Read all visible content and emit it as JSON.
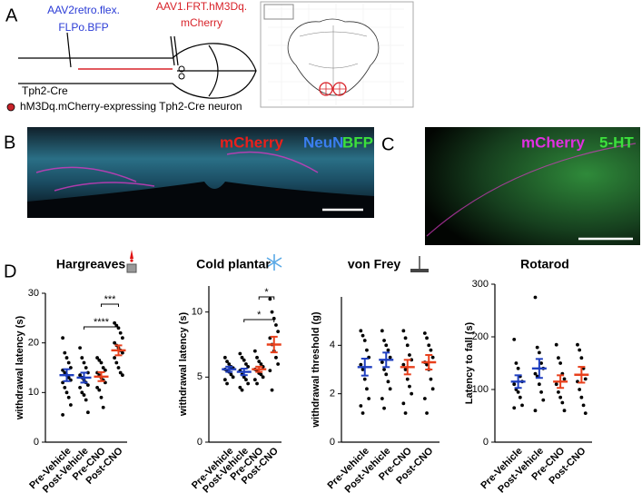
{
  "panels": {
    "a": {
      "label": "A",
      "virus_1": [
        "AAV2retro.flex.",
        "FLPo.BFP"
      ],
      "virus_2": [
        "AAV1.FRT.hM3Dq.",
        "mCherry"
      ],
      "mouse_line": "Tph2-Cre",
      "legend": "hM3Dq.mCherry-expressing Tph2-Cre neuron"
    },
    "b": {
      "label": "B",
      "stains": [
        "mCherry",
        "NeuN",
        "BFP"
      ]
    },
    "c": {
      "label": "C",
      "stains": [
        "mCherry",
        "5-HT"
      ]
    },
    "d": {
      "label": "D"
    }
  },
  "chart_data": [
    {
      "type": "strip",
      "title": "Hargreaves",
      "y_label": "withdrawal latency (s)",
      "categories": [
        "Pre-Vehicle",
        "Post-Vehicle",
        "Pre-CNO",
        "Post-CNO"
      ],
      "colors": [
        "#1f3fbf",
        "#1f3fbf",
        "#e8401c",
        "#e8401c"
      ],
      "points": [
        [
          21,
          18,
          17,
          16,
          15,
          14.5,
          14,
          13.5,
          13,
          12.5,
          12,
          11,
          10,
          9,
          7.5,
          5.5
        ],
        [
          19,
          17,
          16,
          15,
          14,
          13.5,
          13,
          12.5,
          12,
          11.5,
          11,
          10,
          9.5,
          8.5,
          6
        ],
        [
          17,
          16.5,
          16,
          15,
          14.5,
          14,
          13.5,
          13,
          12.5,
          12,
          11,
          10.5,
          9,
          7
        ],
        [
          24,
          23.5,
          23,
          22,
          21,
          20,
          19.5,
          19,
          18.5,
          18,
          17,
          16,
          15,
          14,
          13.5
        ]
      ],
      "means": [
        13.5,
        13,
        13.2,
        18.5
      ],
      "sems": [
        1.2,
        1,
        0.9,
        1
      ],
      "significance": [
        {
          "between": [
            "Pre-CNO",
            "Post-CNO"
          ],
          "label": "***"
        },
        {
          "between": [
            "Post-Vehicle",
            "Post-CNO"
          ],
          "label": "****"
        }
      ],
      "ylim": [
        0,
        30
      ],
      "yticks": [
        0,
        10,
        20,
        30
      ]
    },
    {
      "type": "strip",
      "title": "Cold plantar",
      "y_label": "withdrawal latency (s)",
      "categories": [
        "Pre-Vehicle",
        "Post-Vehicle",
        "Pre-CNO",
        "Post-CNO"
      ],
      "colors": [
        "#1f3fbf",
        "#1f3fbf",
        "#e8401c",
        "#e8401c"
      ],
      "points": [
        [
          6.5,
          6.2,
          6,
          5.8,
          5.7,
          5.6,
          5.5,
          5.4,
          5.2,
          5,
          4.8,
          4.5
        ],
        [
          6.8,
          6.5,
          6.3,
          6,
          5.8,
          5.5,
          5.2,
          5,
          4.8,
          4.5,
          4.2,
          4
        ],
        [
          7,
          6.5,
          6.2,
          6,
          5.8,
          5.6,
          5.5,
          5.3,
          5.2,
          5,
          4.8,
          4.5
        ],
        [
          11,
          10,
          9.5,
          9,
          8.5,
          8,
          7.5,
          7,
          6.5,
          6,
          5.5,
          4
        ]
      ],
      "means": [
        5.6,
        5.4,
        5.6,
        7.5
      ],
      "sems": [
        0.2,
        0.25,
        0.2,
        0.6
      ],
      "significance": [
        {
          "between": [
            "Pre-CNO",
            "Post-CNO"
          ],
          "label": "*"
        },
        {
          "between": [
            "Post-Vehicle",
            "Post-CNO"
          ],
          "label": "*"
        }
      ],
      "ylim": [
        0,
        12
      ],
      "yticks": [
        0,
        5,
        10
      ]
    },
    {
      "type": "strip",
      "title": "von Frey",
      "y_label": "withdrawal threshold (g)",
      "categories": [
        "Pre-Vehicle",
        "Post-Vehicle",
        "Pre-CNO",
        "Post-CNO"
      ],
      "colors": [
        "#1f3fbf",
        "#1f3fbf",
        "#e8401c",
        "#e8401c"
      ],
      "points": [
        [
          4.6,
          4.4,
          4.2,
          3.8,
          3.5,
          3.2,
          3,
          2.6,
          2.2,
          1.8,
          1.5,
          1.2
        ],
        [
          4.6,
          4.2,
          4,
          3.8,
          3.5,
          3.3,
          3,
          2.8,
          2.5,
          2.2,
          1.8,
          1.4
        ],
        [
          4.6,
          4.3,
          4,
          3.6,
          3.4,
          3.2,
          3,
          2.6,
          2.3,
          2,
          1.6,
          1.2
        ],
        [
          4.5,
          4.3,
          4,
          3.8,
          3.5,
          3.3,
          3.2,
          3,
          2.6,
          2.2,
          1.8,
          1.2
        ]
      ],
      "means": [
        3.1,
        3.4,
        3.1,
        3.3
      ],
      "sems": [
        0.35,
        0.3,
        0.3,
        0.3
      ],
      "significance": [],
      "ylim": [
        0,
        6
      ],
      "yticks": [
        0,
        2,
        4
      ]
    },
    {
      "type": "strip",
      "title": "Rotarod",
      "y_label": "Latency to fall (s)",
      "categories": [
        "Pre-Vehicle",
        "Post-Vehicle",
        "Pre-CNO",
        "Post-CNO"
      ],
      "colors": [
        "#1f3fbf",
        "#1f3fbf",
        "#e8401c",
        "#e8401c"
      ],
      "points": [
        [
          195,
          150,
          140,
          125,
          115,
          110,
          100,
          95,
          85,
          70,
          65
        ],
        [
          275,
          180,
          170,
          150,
          140,
          130,
          125,
          110,
          95,
          80,
          60
        ],
        [
          185,
          160,
          150,
          130,
          120,
          110,
          95,
          85,
          75,
          60
        ],
        [
          185,
          175,
          160,
          140,
          120,
          115,
          100,
          85,
          70,
          55
        ]
      ],
      "means": [
        115,
        140,
        115,
        128
      ],
      "sems": [
        12,
        18,
        12,
        15
      ],
      "significance": [],
      "ylim": [
        0,
        300
      ],
      "yticks": [
        0,
        100,
        200,
        300
      ]
    }
  ]
}
